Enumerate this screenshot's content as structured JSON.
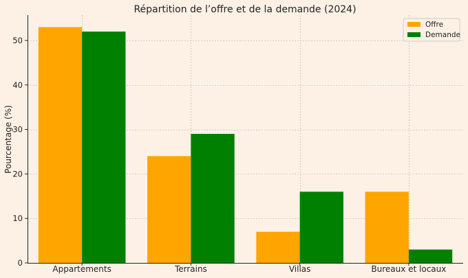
{
  "chart_data": {
    "type": "bar",
    "title": "Répartition de l’offre et de la demande (2024)",
    "xlabel": "",
    "ylabel": "Pourcentage (%)",
    "categories": [
      "Appartements",
      "Terrains",
      "Villas",
      "Bureaux et locaux"
    ],
    "series": [
      {
        "name": "Offre",
        "values": [
          53,
          24,
          7,
          16
        ],
        "color": "#ffa500"
      },
      {
        "name": "Demande",
        "values": [
          52,
          29,
          16,
          3
        ],
        "color": "#008000"
      }
    ],
    "ylim": [
      0,
      55.7
    ],
    "yticks": [
      0,
      10,
      20,
      30,
      40,
      50
    ],
    "grid": true,
    "legend_position": "top-right"
  }
}
